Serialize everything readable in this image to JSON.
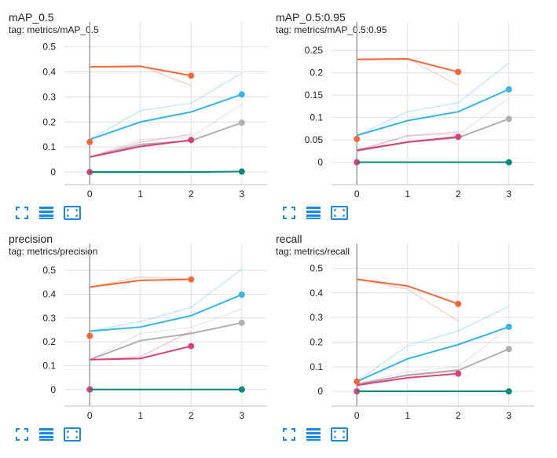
{
  "toolbar": {
    "icons": [
      "fullscreen-icon",
      "data-table-icon",
      "fit-domain-icon"
    ]
  },
  "colors": {
    "orange": "#f4673b",
    "blue": "#33b5e5",
    "gray": "#b0b0b0",
    "magenta": "#d93f7a",
    "teal": "#00897b"
  },
  "chart_data": [
    {
      "type": "line",
      "title": "mAP_0.5",
      "tag": "tag: metrics/mAP_0.5",
      "xlabel": "",
      "ylabel": "",
      "xticks": [
        "0",
        "1",
        "2",
        "3"
      ],
      "yticks": [
        "0",
        "0.1",
        "0.2",
        "0.3",
        "0.4",
        "0.5"
      ],
      "xlim": [
        -0.5,
        3.5
      ],
      "ylim": [
        -0.05,
        0.53
      ],
      "grid": true,
      "series": [
        {
          "color": "#f4673b",
          "x": [
            0,
            1,
            2
          ],
          "smoothed": [
            0.42,
            0.422,
            0.385
          ],
          "raw": [
            0.42,
            0.425,
            0.345
          ]
        },
        {
          "color": "#33b5e5",
          "x": [
            0,
            1,
            2,
            3
          ],
          "smoothed": [
            0.13,
            0.2,
            0.24,
            0.31
          ],
          "raw": [
            0.13,
            0.245,
            0.275,
            0.395
          ]
        },
        {
          "color": "#b0b0b0",
          "x": [
            0,
            1,
            2,
            3
          ],
          "smoothed": [
            0.06,
            0.11,
            0.125,
            0.197
          ],
          "raw": [
            0.06,
            0.13,
            0.14,
            0.27
          ]
        },
        {
          "color": "#d93f7a",
          "x": [
            0,
            1,
            2
          ],
          "smoothed": [
            0.06,
            0.102,
            0.128
          ],
          "raw": [
            0.06,
            0.12,
            0.15
          ]
        },
        {
          "color": "#f4673b",
          "x": [
            0
          ],
          "smoothed": [
            0.12
          ],
          "raw": [
            0.12
          ]
        },
        {
          "color": "#d93f7a",
          "x": [
            0
          ],
          "smoothed": [
            0.0
          ],
          "raw": [
            0.0
          ]
        },
        {
          "color": "#00897b",
          "x": [
            0,
            1,
            2,
            3
          ],
          "smoothed": [
            0.0,
            0.0,
            0.0,
            0.002
          ],
          "raw": [
            0.0,
            0.0,
            0.0,
            0.002
          ]
        }
      ]
    },
    {
      "type": "line",
      "title": "mAP_0.5:0.95",
      "tag": "tag: metrics/mAP_0.5:0.95",
      "xlabel": "",
      "ylabel": "",
      "xticks": [
        "0",
        "1",
        "2",
        "3"
      ],
      "yticks": [
        "0",
        "0.05",
        "0.1",
        "0.15",
        "0.2",
        "0.25"
      ],
      "xlim": [
        -0.5,
        3.5
      ],
      "ylim": [
        -0.05,
        0.275
      ],
      "grid": true,
      "series": [
        {
          "color": "#f4673b",
          "x": [
            0,
            1,
            2
          ],
          "smoothed": [
            0.23,
            0.231,
            0.202
          ],
          "raw": [
            0.23,
            0.232,
            0.172
          ]
        },
        {
          "color": "#33b5e5",
          "x": [
            0,
            1,
            2,
            3
          ],
          "smoothed": [
            0.06,
            0.093,
            0.113,
            0.163
          ],
          "raw": [
            0.06,
            0.113,
            0.133,
            0.222
          ]
        },
        {
          "color": "#b0b0b0",
          "x": [
            0,
            1,
            2,
            3
          ],
          "smoothed": [
            0.025,
            0.045,
            0.055,
            0.097
          ],
          "raw": [
            0.025,
            0.06,
            0.062,
            0.143
          ]
        },
        {
          "color": "#d93f7a",
          "x": [
            0,
            1,
            2
          ],
          "smoothed": [
            0.027,
            0.045,
            0.057
          ],
          "raw": [
            0.027,
            0.059,
            0.068
          ]
        },
        {
          "color": "#f4673b",
          "x": [
            0
          ],
          "smoothed": [
            0.052
          ],
          "raw": [
            0.052
          ]
        },
        {
          "color": "#d93f7a",
          "x": [
            0
          ],
          "smoothed": [
            0.0
          ],
          "raw": [
            0.0
          ]
        },
        {
          "color": "#00897b",
          "x": [
            0,
            1,
            2,
            3
          ],
          "smoothed": [
            0.0,
            0.0,
            0.0,
            0.0
          ],
          "raw": [
            0.0,
            0.0,
            0.0,
            0.0
          ]
        }
      ]
    },
    {
      "type": "line",
      "title": "precision",
      "tag": "tag: metrics/precision",
      "xlabel": "",
      "ylabel": "",
      "xticks": [
        "0",
        "1",
        "2",
        "3"
      ],
      "yticks": [
        "0",
        "0.1",
        "0.2",
        "0.3",
        "0.4",
        "0.5"
      ],
      "xlim": [
        -0.5,
        3.5
      ],
      "ylim": [
        -0.07,
        0.54
      ],
      "grid": true,
      "series": [
        {
          "color": "#f4673b",
          "x": [
            0,
            1,
            2
          ],
          "smoothed": [
            0.43,
            0.458,
            0.462
          ],
          "raw": [
            0.43,
            0.472,
            0.465
          ]
        },
        {
          "color": "#33b5e5",
          "x": [
            0,
            1,
            2,
            3
          ],
          "smoothed": [
            0.245,
            0.262,
            0.31,
            0.398
          ],
          "raw": [
            0.245,
            0.285,
            0.345,
            0.505
          ]
        },
        {
          "color": "#b0b0b0",
          "x": [
            0,
            1,
            2,
            3
          ],
          "smoothed": [
            0.125,
            0.205,
            0.235,
            0.28
          ],
          "raw": [
            0.125,
            0.235,
            0.26,
            0.338
          ]
        },
        {
          "color": "#d93f7a",
          "x": [
            0,
            1,
            2
          ],
          "smoothed": [
            0.125,
            0.13,
            0.182
          ],
          "raw": [
            0.125,
            0.138,
            0.245
          ]
        },
        {
          "color": "#f4673b",
          "x": [
            0
          ],
          "smoothed": [
            0.225
          ],
          "raw": [
            0.225
          ]
        },
        {
          "color": "#d93f7a",
          "x": [
            0
          ],
          "smoothed": [
            0.0
          ],
          "raw": [
            0.0
          ]
        },
        {
          "color": "#00897b",
          "x": [
            0,
            1,
            2,
            3
          ],
          "smoothed": [
            0.0,
            0.0,
            0.0,
            0.0
          ],
          "raw": [
            0.0,
            0.0,
            0.0,
            0.0
          ]
        }
      ]
    },
    {
      "type": "line",
      "title": "recall",
      "tag": "tag: metrics/recall",
      "xlabel": "",
      "ylabel": "",
      "xticks": [
        "0",
        "1",
        "2",
        "3"
      ],
      "yticks": [
        "0",
        "0.1",
        "0.2",
        "0.3",
        "0.4",
        "0.5"
      ],
      "xlim": [
        -0.5,
        3.5
      ],
      "ylim": [
        -0.06,
        0.53
      ],
      "grid": true,
      "series": [
        {
          "color": "#f4673b",
          "x": [
            0,
            1,
            2
          ],
          "smoothed": [
            0.455,
            0.428,
            0.355
          ],
          "raw": [
            0.455,
            0.415,
            0.285
          ]
        },
        {
          "color": "#33b5e5",
          "x": [
            0,
            1,
            2,
            3
          ],
          "smoothed": [
            0.04,
            0.132,
            0.19,
            0.262
          ],
          "raw": [
            0.04,
            0.185,
            0.245,
            0.345
          ]
        },
        {
          "color": "#b0b0b0",
          "x": [
            0,
            1,
            2,
            3
          ],
          "smoothed": [
            0.03,
            0.065,
            0.085,
            0.172
          ],
          "raw": [
            0.03,
            0.08,
            0.1,
            0.26
          ]
        },
        {
          "color": "#d93f7a",
          "x": [
            0,
            1,
            2
          ],
          "smoothed": [
            0.025,
            0.055,
            0.072
          ],
          "raw": [
            0.025,
            0.068,
            0.088
          ]
        },
        {
          "color": "#f4673b",
          "x": [
            0
          ],
          "smoothed": [
            0.04
          ],
          "raw": [
            0.04
          ]
        },
        {
          "color": "#d93f7a",
          "x": [
            0
          ],
          "smoothed": [
            0.0
          ],
          "raw": [
            0.0
          ]
        },
        {
          "color": "#00897b",
          "x": [
            0,
            1,
            2,
            3
          ],
          "smoothed": [
            0.0,
            0.0,
            0.0,
            0.0
          ],
          "raw": [
            0.0,
            0.0,
            0.0,
            0.0
          ]
        }
      ]
    }
  ]
}
